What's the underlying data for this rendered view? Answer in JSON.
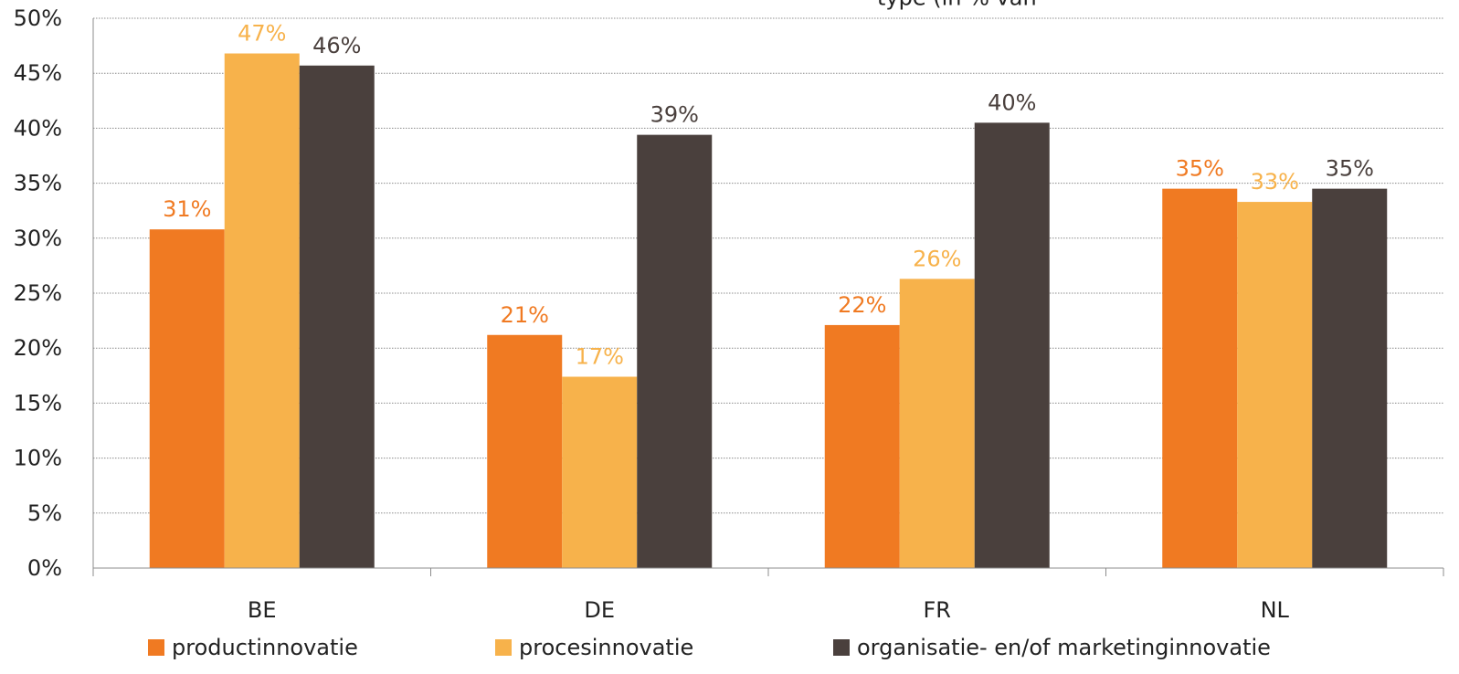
{
  "chart_data": {
    "type": "bar",
    "title_fragment": "type (in % van",
    "categories": [
      "BE",
      "DE",
      "FR",
      "NL"
    ],
    "ylim": [
      0,
      50
    ],
    "yticks": [
      "0%",
      "5%",
      "10%",
      "15%",
      "20%",
      "25%",
      "30%",
      "35%",
      "40%",
      "45%",
      "50%"
    ],
    "grid": true,
    "legend_position": "bottom",
    "series": [
      {
        "name": "productinnovatie",
        "color": "#F07A22",
        "values": [
          30.8,
          21.2,
          22.1,
          34.5
        ],
        "labels": [
          "31%",
          "21%",
          "22%",
          "35%"
        ]
      },
      {
        "name": "procesinnovatie",
        "color": "#F7B24B",
        "values": [
          46.8,
          17.4,
          26.3,
          33.3
        ],
        "labels": [
          "47%",
          "17%",
          "26%",
          "33%"
        ]
      },
      {
        "name": "organisatie- en/of marketinginnovatie",
        "color": "#4A403D",
        "values": [
          45.7,
          39.4,
          40.5,
          34.5
        ],
        "labels": [
          "46%",
          "39%",
          "40%",
          "35%"
        ]
      }
    ]
  }
}
